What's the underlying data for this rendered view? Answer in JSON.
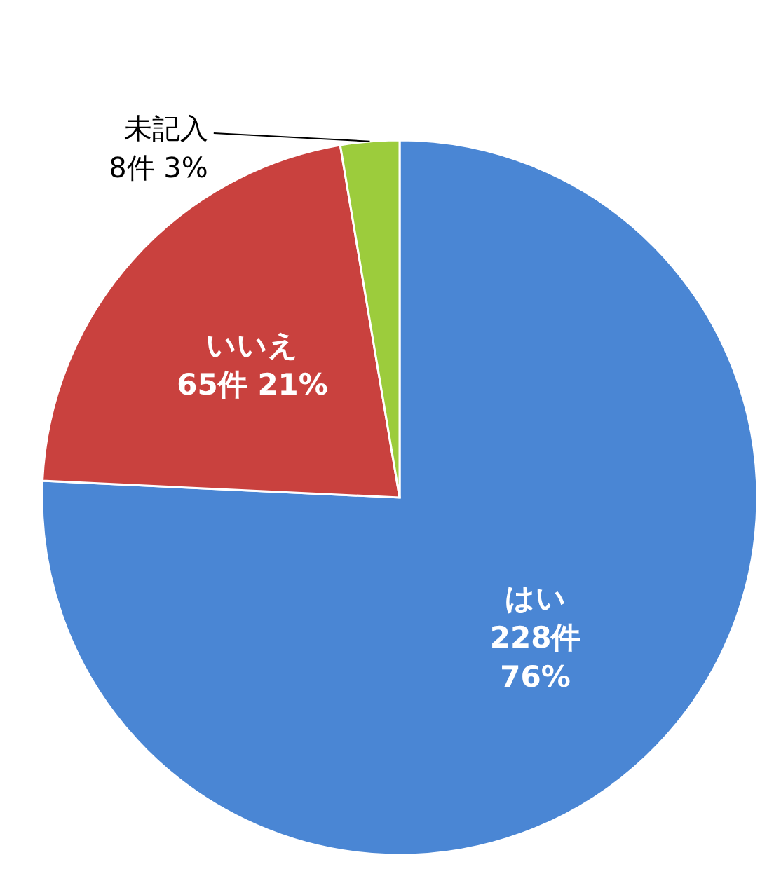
{
  "chart_data": {
    "type": "pie",
    "categories": [
      "はい",
      "いいえ",
      "未記入"
    ],
    "values": [
      228,
      65,
      8
    ],
    "colors": [
      "#4a86d4",
      "#c9413e",
      "#9ccc3c"
    ],
    "value_labels": [
      "228件\n76%",
      "65件 21%",
      "8件 3%"
    ]
  }
}
